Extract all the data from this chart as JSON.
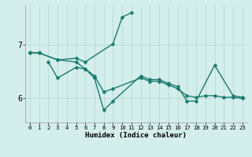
{
  "xlabel": "Humidex (Indice chaleur)",
  "background_color": "#d4eeeb",
  "grid_color": "#aed8d4",
  "line_color": "#1a7a6e",
  "ylim": [
    5.55,
    7.75
  ],
  "yticks": [
    6.0,
    7.0
  ],
  "ytick_labels": [
    "6",
    "7"
  ],
  "xlim": [
    -0.5,
    23.5
  ],
  "xticks": [
    0,
    1,
    2,
    3,
    4,
    5,
    6,
    7,
    8,
    9,
    10,
    11,
    12,
    13,
    14,
    15,
    16,
    17,
    18,
    19,
    20,
    21,
    22,
    23
  ],
  "series": [
    {
      "x": [
        0,
        1
      ],
      "y": [
        6.85,
        6.85
      ]
    },
    {
      "x": [
        0,
        1,
        3,
        5,
        6,
        9,
        10,
        11
      ],
      "y": [
        6.85,
        6.85,
        6.72,
        6.75,
        6.68,
        7.02,
        7.52,
        7.6
      ]
    },
    {
      "x": [
        2,
        3,
        5,
        6,
        7,
        8,
        9,
        12,
        13,
        14,
        15,
        16,
        17,
        18,
        20,
        22,
        23
      ],
      "y": [
        6.68,
        6.38,
        6.58,
        6.55,
        6.38,
        5.78,
        5.95,
        6.42,
        6.35,
        6.35,
        6.28,
        6.22,
        5.95,
        5.95,
        6.62,
        6.05,
        6.02
      ]
    },
    {
      "x": [
        0,
        1,
        3,
        5,
        6,
        7,
        8,
        9,
        12,
        13,
        14,
        15,
        16,
        17,
        18,
        19,
        20,
        21,
        22,
        23
      ],
      "y": [
        6.85,
        6.85,
        6.72,
        6.68,
        6.55,
        6.42,
        6.12,
        6.18,
        6.38,
        6.32,
        6.32,
        6.25,
        6.18,
        6.05,
        6.02,
        6.05,
        6.05,
        6.02,
        6.02,
        6.0
      ]
    }
  ],
  "xlabel_fontsize": 6.5,
  "xlabel_fontweight": "bold",
  "xtick_fontsize": 5.2,
  "ytick_fontsize": 7.0,
  "linewidth": 1.0,
  "markersize": 2.5
}
